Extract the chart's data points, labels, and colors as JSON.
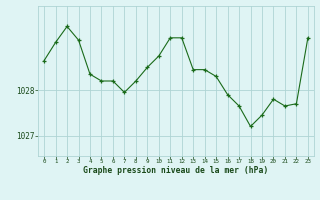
{
  "x": [
    0,
    1,
    2,
    3,
    4,
    5,
    6,
    7,
    8,
    9,
    10,
    11,
    12,
    13,
    14,
    15,
    16,
    17,
    18,
    19,
    20,
    21,
    22,
    23
  ],
  "y": [
    1028.65,
    1029.05,
    1029.4,
    1029.1,
    1028.35,
    1028.2,
    1028.2,
    1027.95,
    1028.2,
    1028.5,
    1028.75,
    1029.15,
    1029.15,
    1028.45,
    1028.45,
    1028.3,
    1027.9,
    1027.65,
    1027.2,
    1027.45,
    1027.8,
    1027.65,
    1027.7,
    1029.15
  ],
  "line_color": "#1a6b1a",
  "marker": "+",
  "bg_color": "#dff4f4",
  "grid_color": "#aed4d4",
  "xlabel": "Graphe pression niveau de la mer (hPa)",
  "xlabel_color": "#1a4a1a",
  "tick_color": "#1a4a1a",
  "ytick_labels": [
    "1027",
    "1028"
  ],
  "ytick_vals": [
    1027.0,
    1028.0
  ],
  "ylim": [
    1026.55,
    1029.85
  ],
  "xlim": [
    -0.5,
    23.5
  ],
  "figsize": [
    3.2,
    2.0
  ],
  "dpi": 100
}
